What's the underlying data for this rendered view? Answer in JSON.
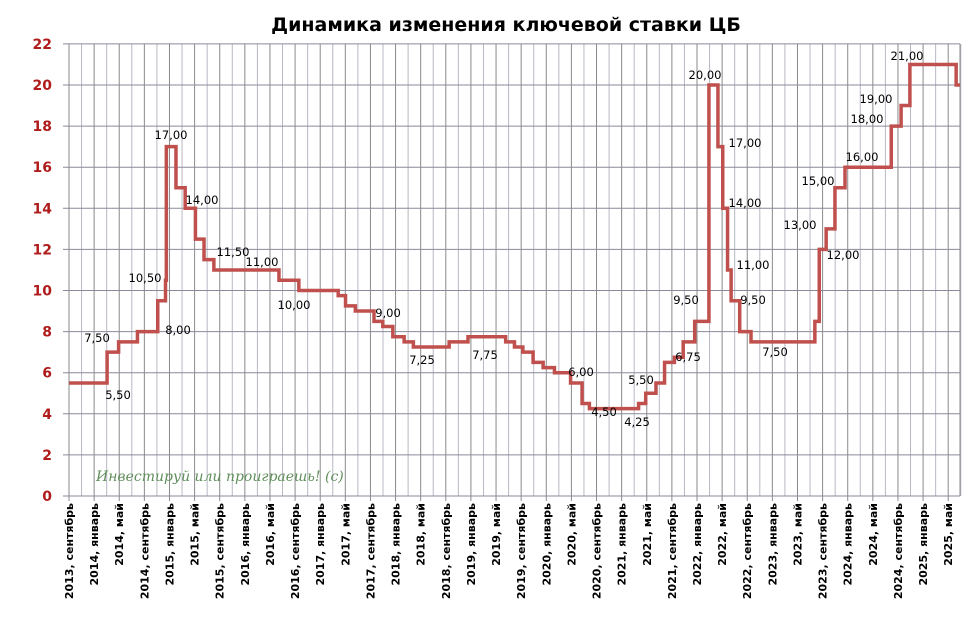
{
  "chart_data": {
    "type": "line",
    "step": true,
    "title": "Динамика изменения ключевой ставки ЦБ",
    "watermark": "Инвестируй или проиграешь! (с)",
    "ylim": [
      0,
      22
    ],
    "yticks": [
      0,
      2,
      4,
      6,
      8,
      10,
      12,
      14,
      16,
      18,
      20,
      22
    ],
    "xlim": [
      "2013-09",
      "2025-07"
    ],
    "grid": true,
    "xtick_labels": [
      "2013, сентябрь",
      "2014, январь",
      "2014, май",
      "2014, сентябрь",
      "2015, январь",
      "2015, май",
      "2015, сентябрь",
      "2016, январь",
      "2016, май",
      "2016, сентябрь",
      "2017, январь",
      "2017, май",
      "2017, сентябрь",
      "2018, январь",
      "2018, май",
      "2018, сентябрь",
      "2019, январь",
      "2019, май",
      "2019, сентябрь",
      "2020, январь",
      "2020, май",
      "2020, сентябрь",
      "2021, январь",
      "2021, май",
      "2021, сентябрь",
      "2022, январь",
      "2022, май",
      "2022, сентябрь",
      "2023, январь",
      "2023, май",
      "2023, сентябрь",
      "2024, январь",
      "2024, май",
      "2024, сентябрь",
      "2025, январь",
      "2025, май"
    ],
    "line_color": "#c0504d",
    "series": [
      {
        "points": [
          [
            "2013-09-13",
            5.5
          ],
          [
            "2014-03-03",
            7.0
          ],
          [
            "2014-04-28",
            7.5
          ],
          [
            "2014-07-28",
            8.0
          ],
          [
            "2014-11-05",
            9.5
          ],
          [
            "2014-12-12",
            10.5
          ],
          [
            "2014-12-16",
            17.0
          ],
          [
            "2015-02-02",
            15.0
          ],
          [
            "2015-03-16",
            14.0
          ],
          [
            "2015-05-05",
            12.5
          ],
          [
            "2015-06-16",
            11.5
          ],
          [
            "2015-08-03",
            11.0
          ],
          [
            "2016-06-14",
            10.5
          ],
          [
            "2016-09-19",
            10.0
          ],
          [
            "2017-03-27",
            9.75
          ],
          [
            "2017-05-02",
            9.25
          ],
          [
            "2017-06-19",
            9.0
          ],
          [
            "2017-09-18",
            8.5
          ],
          [
            "2017-10-30",
            8.25
          ],
          [
            "2017-12-18",
            7.75
          ],
          [
            "2018-02-12",
            7.5
          ],
          [
            "2018-03-26",
            7.25
          ],
          [
            "2018-09-17",
            7.5
          ],
          [
            "2018-12-17",
            7.75
          ],
          [
            "2019-06-17",
            7.5
          ],
          [
            "2019-07-29",
            7.25
          ],
          [
            "2019-09-09",
            7.0
          ],
          [
            "2019-10-28",
            6.5
          ],
          [
            "2019-12-16",
            6.25
          ],
          [
            "2020-02-10",
            6.0
          ],
          [
            "2020-04-27",
            5.5
          ],
          [
            "2020-06-22",
            4.5
          ],
          [
            "2020-07-27",
            4.25
          ],
          [
            "2021-03-22",
            4.5
          ],
          [
            "2021-04-26",
            5.0
          ],
          [
            "2021-06-15",
            5.5
          ],
          [
            "2021-07-26",
            6.5
          ],
          [
            "2021-09-13",
            6.75
          ],
          [
            "2021-10-25",
            7.5
          ],
          [
            "2021-12-20",
            8.5
          ],
          [
            "2022-02-28",
            20.0
          ],
          [
            "2022-04-11",
            17.0
          ],
          [
            "2022-05-04",
            14.0
          ],
          [
            "2022-05-27",
            11.0
          ],
          [
            "2022-06-14",
            9.5
          ],
          [
            "2022-07-25",
            8.0
          ],
          [
            "2022-09-19",
            7.5
          ],
          [
            "2023-07-24",
            8.5
          ],
          [
            "2023-08-15",
            12.0
          ],
          [
            "2023-09-18",
            13.0
          ],
          [
            "2023-10-30",
            15.0
          ],
          [
            "2023-12-18",
            16.0
          ],
          [
            "2024-07-29",
            18.0
          ],
          [
            "2024-09-16",
            19.0
          ],
          [
            "2024-10-28",
            21.0
          ],
          [
            "2025-06-09",
            20.0
          ],
          [
            "2025-07-01",
            20.0
          ]
        ]
      }
    ],
    "annotations": [
      "7,50",
      "5,50",
      "10,50",
      "8,00",
      "17,00",
      "14,00",
      "11,50",
      "11,00",
      "10,00",
      "9,00",
      "7,25",
      "7,75",
      "6,00",
      "4,50",
      "5,50",
      "4,25",
      "9,50",
      "6,75",
      "20,00",
      "17,00",
      "14,00",
      "11,00",
      "9,50",
      "7,50",
      "13,00",
      "12,00",
      "15,00",
      "16,00",
      "18,00",
      "19,00",
      "21,00"
    ]
  }
}
